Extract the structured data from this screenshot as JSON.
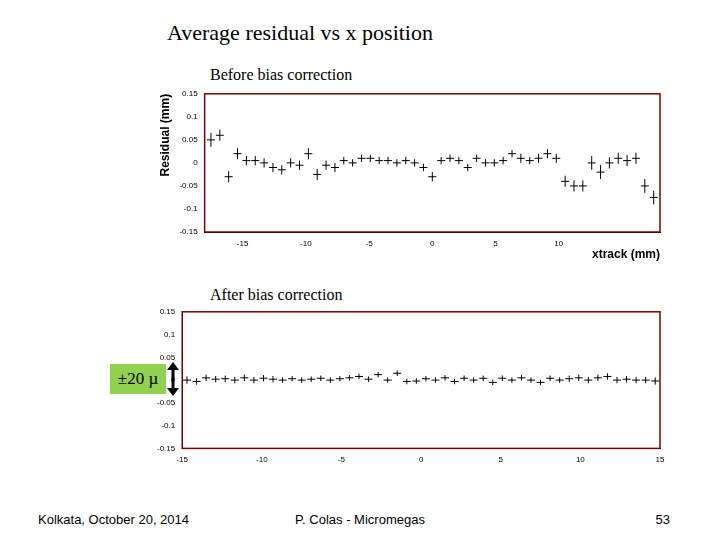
{
  "slide": {
    "title": "Average residual vs x position",
    "footer_left": "Kolkata, October 20, 2014",
    "footer_center": "P. Colas - Micromegas",
    "footer_right": "53"
  },
  "chart_data": [
    {
      "type": "scatter",
      "title": "Before bias correction",
      "x_label": "xtrack (mm)",
      "y_label": "Residual (mm)",
      "x": [
        -17.5,
        -16.8,
        -16.1,
        -15.4,
        -14.7,
        -14.0,
        -13.3,
        -12.6,
        -11.9,
        -11.2,
        -10.5,
        -9.8,
        -9.1,
        -8.4,
        -7.7,
        -7.0,
        -6.3,
        -5.6,
        -4.9,
        -4.2,
        -3.5,
        -2.8,
        -2.1,
        -1.4,
        -0.7,
        0,
        0.7,
        1.4,
        2.1,
        2.8,
        3.5,
        4.2,
        4.9,
        5.6,
        6.3,
        7.0,
        7.7,
        8.4,
        9.1,
        9.8,
        10.5,
        11.2,
        11.9,
        12.6,
        13.3,
        14.0,
        14.7,
        15.4,
        16.1,
        16.8,
        17.5
      ],
      "values": [
        0.05,
        0.06,
        -0.03,
        0.02,
        0.005,
        0.005,
        0.0,
        -0.01,
        -0.015,
        0.0,
        -0.005,
        0.02,
        -0.025,
        -0.005,
        -0.01,
        0.005,
        0.0,
        0.01,
        0.01,
        0.005,
        0.005,
        0.0,
        0.005,
        0.0,
        -0.01,
        -0.03,
        0.005,
        0.01,
        0.005,
        -0.01,
        0.01,
        0.0,
        0.0,
        0.005,
        0.02,
        0.01,
        0.005,
        0.01,
        0.02,
        0.01,
        -0.04,
        -0.05,
        -0.05,
        0.0,
        -0.02,
        0.0,
        0.01,
        0.005,
        0.01,
        -0.05,
        -0.075
      ],
      "errors": [
        0.015,
        0.012,
        0.012,
        0.012,
        0.01,
        0.01,
        0.01,
        0.01,
        0.01,
        0.01,
        0.01,
        0.012,
        0.012,
        0.01,
        0.01,
        0.008,
        0.008,
        0.008,
        0.008,
        0.008,
        0.008,
        0.008,
        0.008,
        0.008,
        0.008,
        0.01,
        0.008,
        0.008,
        0.008,
        0.008,
        0.008,
        0.008,
        0.008,
        0.008,
        0.008,
        0.01,
        0.008,
        0.01,
        0.01,
        0.01,
        0.012,
        0.012,
        0.012,
        0.015,
        0.015,
        0.012,
        0.012,
        0.012,
        0.012,
        0.015,
        0.015
      ],
      "xlim": [
        -18,
        18
      ],
      "xticks": [
        -15,
        -10,
        -5,
        0,
        5,
        10
      ],
      "ylim": [
        -0.15,
        0.15
      ],
      "yticks": [
        -0.15,
        -0.1,
        -0.05,
        0,
        0.05,
        0.1,
        0.15
      ],
      "color": "#000000",
      "marker": "cross",
      "grid": false
    },
    {
      "type": "scatter",
      "title": "After bias correction",
      "annotation": "±20 µ",
      "x": [
        -14.7,
        -14.1,
        -13.5,
        -12.9,
        -12.3,
        -11.7,
        -11.1,
        -10.5,
        -9.9,
        -9.3,
        -8.7,
        -8.1,
        -7.5,
        -6.9,
        -6.3,
        -5.7,
        -5.1,
        -4.5,
        -3.9,
        -3.3,
        -2.7,
        -2.1,
        -1.5,
        -0.9,
        -0.3,
        0.3,
        0.9,
        1.5,
        2.1,
        2.7,
        3.3,
        3.9,
        4.5,
        5.1,
        5.7,
        6.3,
        6.9,
        7.5,
        8.1,
        8.7,
        9.3,
        9.9,
        10.5,
        11.1,
        11.7,
        12.3,
        12.9,
        13.5,
        14.1,
        14.7
      ],
      "values": [
        0.0,
        -0.003,
        0.005,
        0.002,
        0.003,
        0.0,
        0.005,
        0.0,
        0.004,
        0.002,
        0.0,
        0.003,
        0.0,
        0.002,
        0.004,
        0.0,
        0.003,
        0.005,
        0.008,
        0.002,
        0.012,
        0.0,
        0.015,
        -0.003,
        -0.002,
        0.003,
        0.0,
        0.005,
        -0.003,
        0.004,
        0.0,
        0.004,
        -0.005,
        0.004,
        0.0,
        0.005,
        0.0,
        -0.005,
        0.004,
        0.0,
        0.003,
        0.005,
        0.0,
        0.005,
        0.008,
        0.0,
        0.002,
        0.0,
        0.0,
        -0.002
      ],
      "errors": [
        0.008,
        0.007,
        0.007,
        0.007,
        0.007,
        0.007,
        0.007,
        0.007,
        0.007,
        0.007,
        0.006,
        0.006,
        0.006,
        0.006,
        0.006,
        0.006,
        0.006,
        0.006,
        0.006,
        0.006,
        0.006,
        0.006,
        0.006,
        0.006,
        0.006,
        0.006,
        0.006,
        0.006,
        0.006,
        0.006,
        0.006,
        0.006,
        0.006,
        0.006,
        0.006,
        0.006,
        0.006,
        0.006,
        0.006,
        0.006,
        0.007,
        0.007,
        0.007,
        0.007,
        0.007,
        0.007,
        0.007,
        0.007,
        0.007,
        0.008
      ],
      "xlim": [
        -15,
        15
      ],
      "xticks": [
        -15,
        -10,
        -5,
        0,
        5,
        10,
        15
      ],
      "ylim": [
        -0.15,
        0.15
      ],
      "yticks": [
        -0.15,
        -0.1,
        -0.05,
        0,
        0.05,
        0.1,
        0.15
      ],
      "color": "#000000",
      "marker": "cross",
      "grid": false
    }
  ]
}
